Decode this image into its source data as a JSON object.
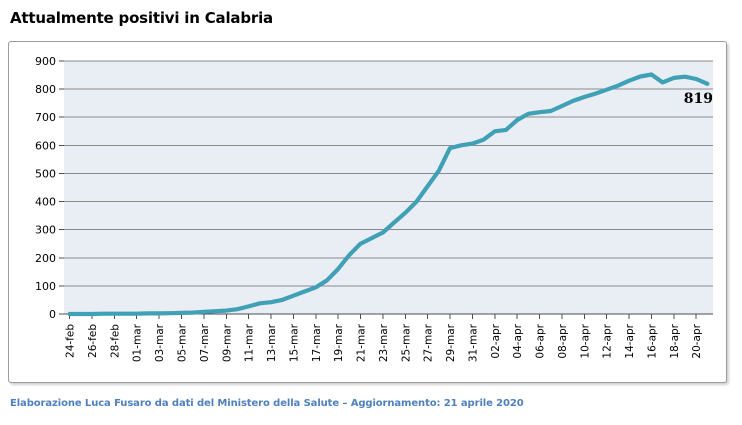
{
  "page": {
    "title": "Attualmente positivi in Calabria",
    "footer": "Elaborazione Luca Fusaro da dati del Ministero della Salute – Aggiornamento: 21 aprile 2020"
  },
  "colors": {
    "series_line": "#3FA0B6",
    "plot_background": "#E9EEF4",
    "gridline": "#8a8a8a",
    "axis_line": "#4d4d4d",
    "frame_border": "#9c9c9c",
    "title_text": "#000000",
    "tick_label_text": "#000000",
    "footer_text": "#4F81BD",
    "data_label_text": "#000000",
    "page_background": "#ffffff"
  },
  "chart_data": {
    "type": "line",
    "title": "Attualmente positivi in Calabria",
    "xlabel": "",
    "ylabel": "",
    "ylim": [
      0,
      900
    ],
    "yticks": [
      0,
      100,
      200,
      300,
      400,
      500,
      600,
      700,
      800,
      900
    ],
    "grid": true,
    "legend": false,
    "x_tick_every": 2,
    "last_point_label": "819",
    "x": [
      "24-feb",
      "25-feb",
      "26-feb",
      "27-feb",
      "28-feb",
      "29-feb",
      "01-mar",
      "02-mar",
      "03-mar",
      "04-mar",
      "05-mar",
      "06-mar",
      "07-mar",
      "08-mar",
      "09-mar",
      "10-mar",
      "11-mar",
      "12-mar",
      "13-mar",
      "14-mar",
      "15-mar",
      "16-mar",
      "17-mar",
      "18-mar",
      "19-mar",
      "20-mar",
      "21-mar",
      "22-mar",
      "23-mar",
      "24-mar",
      "25-mar",
      "26-mar",
      "27-mar",
      "28-mar",
      "29-mar",
      "30-mar",
      "31-mar",
      "01-apr",
      "02-apr",
      "03-apr",
      "04-apr",
      "05-apr",
      "06-apr",
      "07-apr",
      "08-apr",
      "09-apr",
      "10-apr",
      "11-apr",
      "12-apr",
      "13-apr",
      "14-apr",
      "15-apr",
      "16-apr",
      "17-apr",
      "18-apr",
      "19-apr",
      "20-apr",
      "21-apr"
    ],
    "values": [
      0,
      0,
      0,
      1,
      1,
      1,
      1,
      2,
      2,
      3,
      4,
      5,
      8,
      10,
      12,
      17,
      27,
      38,
      42,
      50,
      65,
      80,
      95,
      120,
      160,
      210,
      250,
      270,
      290,
      325,
      360,
      400,
      455,
      510,
      590,
      600,
      606,
      620,
      650,
      655,
      690,
      712,
      718,
      722,
      740,
      758,
      772,
      784,
      798,
      812,
      830,
      845,
      852,
      824,
      840,
      844,
      836,
      819
    ]
  }
}
